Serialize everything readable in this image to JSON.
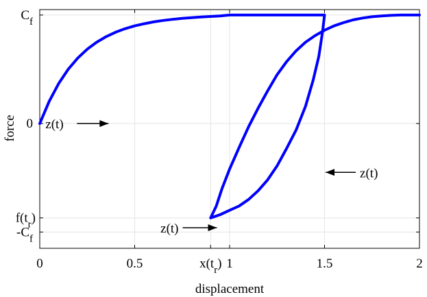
{
  "chart_data": {
    "type": "line",
    "title": "",
    "xlabel": "displacement",
    "ylabel": "force",
    "xlim": [
      0,
      2
    ],
    "ylim": [
      -1.15,
      1.05
    ],
    "grid": true,
    "legend": "none",
    "x_ticks": [
      {
        "value": 0,
        "label": "0"
      },
      {
        "value": 0.5,
        "label": "0.5"
      },
      {
        "value": 1,
        "label": "1"
      },
      {
        "value": 1.5,
        "label": "1.5"
      },
      {
        "value": 2,
        "label": "2"
      }
    ],
    "x_special_tick": {
      "value": 0.9,
      "label": "x(t",
      "sub": "r",
      "close": ")"
    },
    "y_ticks": [
      {
        "value": 1,
        "label": "C",
        "sub": "f"
      },
      {
        "value": 0,
        "label": "0"
      },
      {
        "value": -0.87,
        "label": "f(t",
        "sub": "r",
        "close": ")"
      },
      {
        "value": -1,
        "label": "-C",
        "sub": "f"
      }
    ],
    "series": [
      {
        "color": "#0000ff",
        "points": [
          [
            0.0,
            0.0
          ],
          [
            0.05,
            0.205
          ],
          [
            0.1,
            0.37
          ],
          [
            0.15,
            0.5
          ],
          [
            0.2,
            0.603
          ],
          [
            0.25,
            0.685
          ],
          [
            0.3,
            0.75
          ],
          [
            0.35,
            0.801
          ],
          [
            0.4,
            0.842
          ],
          [
            0.45,
            0.874
          ],
          [
            0.5,
            0.9
          ],
          [
            0.55,
            0.92
          ],
          [
            0.6,
            0.937
          ],
          [
            0.65,
            0.95
          ],
          [
            0.7,
            0.96
          ],
          [
            0.75,
            0.969
          ],
          [
            0.8,
            0.976
          ],
          [
            0.85,
            0.982
          ],
          [
            0.9,
            0.987
          ],
          [
            0.95,
            0.992
          ],
          [
            1.0,
            1.0
          ],
          [
            1.5,
            1.0
          ],
          [
            1.49,
            0.85
          ],
          [
            1.47,
            0.62
          ],
          [
            1.44,
            0.4
          ],
          [
            1.4,
            0.16
          ],
          [
            1.35,
            -0.06
          ],
          [
            1.3,
            -0.23
          ],
          [
            1.25,
            -0.39
          ],
          [
            1.2,
            -0.52
          ],
          [
            1.15,
            -0.62
          ],
          [
            1.1,
            -0.7
          ],
          [
            1.05,
            -0.76
          ],
          [
            1.0,
            -0.8
          ],
          [
            0.95,
            -0.84
          ],
          [
            0.9,
            -0.87
          ],
          [
            0.93,
            -0.76
          ],
          [
            0.96,
            -0.6
          ],
          [
            1.0,
            -0.42
          ],
          [
            1.05,
            -0.22
          ],
          [
            1.1,
            -0.03
          ],
          [
            1.15,
            0.14
          ],
          [
            1.2,
            0.3
          ],
          [
            1.25,
            0.45
          ],
          [
            1.3,
            0.57
          ],
          [
            1.35,
            0.67
          ],
          [
            1.4,
            0.75
          ],
          [
            1.45,
            0.81
          ],
          [
            1.5,
            0.86
          ],
          [
            1.55,
            0.9
          ],
          [
            1.6,
            0.93
          ],
          [
            1.65,
            0.955
          ],
          [
            1.7,
            0.972
          ],
          [
            1.75,
            0.984
          ],
          [
            1.8,
            0.992
          ],
          [
            1.85,
            0.997
          ],
          [
            1.9,
            1.0
          ],
          [
            2.0,
            1.0
          ]
        ]
      }
    ],
    "annotations": [
      {
        "text": "z(t)",
        "x": 0.03,
        "y": 0.0,
        "arrow": "right",
        "anchor": "start"
      },
      {
        "text": "z(t)",
        "x": 1.52,
        "y": -0.45,
        "arrow": "left",
        "anchor": "start"
      },
      {
        "text": "z(t)",
        "x": 0.89,
        "y": -0.96,
        "arrow": "right",
        "anchor": "end"
      }
    ]
  }
}
